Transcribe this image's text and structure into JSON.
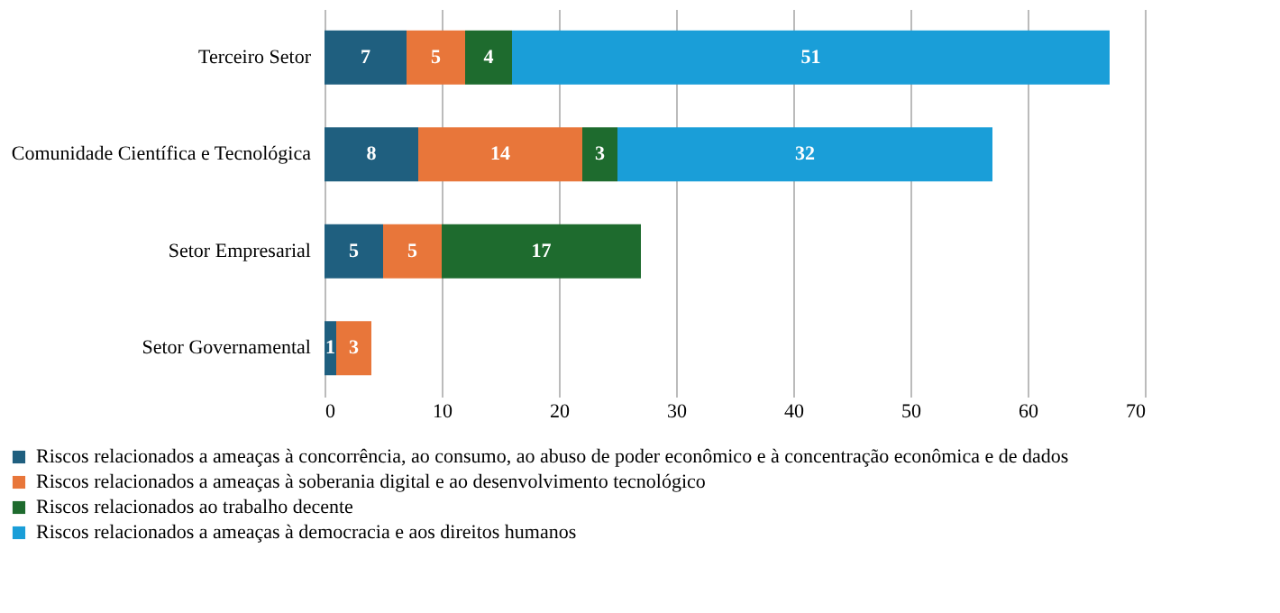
{
  "chart_data": {
    "type": "bar",
    "orientation": "horizontal",
    "stacked": true,
    "data_labels": true,
    "grid": "x",
    "legend": "bottom",
    "categories": [
      "Terceiro Setor",
      "Comunidade Científica e Tecnológica",
      "Setor Empresarial",
      "Setor Governamental"
    ],
    "series": [
      {
        "name": "Riscos relacionados a ameaças à concorrência, ao consumo, ao abuso de poder econômico e à concentração econômica e de dados",
        "color": "#1f5f7f",
        "values": [
          7,
          8,
          5,
          1
        ]
      },
      {
        "name": "Riscos relacionados a ameaças à soberania digital e ao desenvolvimento tecnológico",
        "color": "#e8763a",
        "values": [
          5,
          14,
          5,
          3
        ]
      },
      {
        "name": "Riscos relacionados ao trabalho decente",
        "color": "#1e6b2e",
        "values": [
          4,
          3,
          17,
          null
        ]
      },
      {
        "name": "Riscos relacionados a ameaças à democracia e aos direitos humanos",
        "color": "#1a9ed8",
        "values": [
          51,
          32,
          null,
          null
        ]
      }
    ],
    "xlim": [
      0,
      70
    ],
    "xticks": [
      0,
      10,
      20,
      30,
      40,
      50,
      60,
      70
    ]
  }
}
